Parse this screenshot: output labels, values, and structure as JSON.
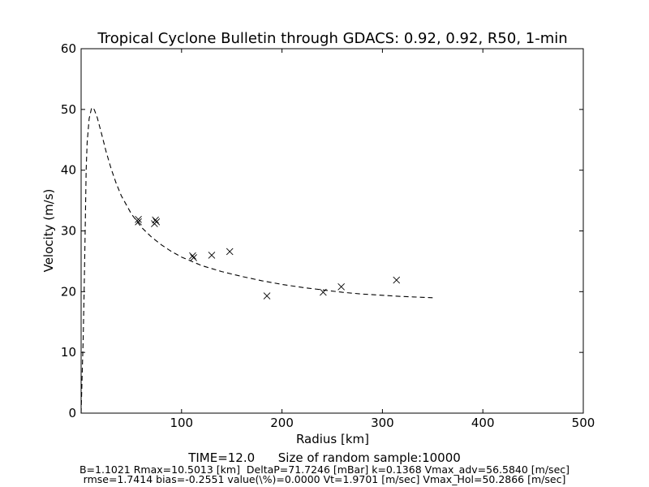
{
  "chart_data": {
    "type": "scatter",
    "title": "Tropical Cyclone Bulletin through GDACS: 0.92, 0.92, R50, 1-min",
    "xlabel": "Radius [km]",
    "ylabel": "Velocity (m/s)",
    "xlim": [
      0,
      500
    ],
    "ylim": [
      0,
      60
    ],
    "xticks": [
      100,
      200,
      300,
      400,
      500
    ],
    "yticks": [
      0,
      10,
      20,
      30,
      40,
      50,
      60
    ],
    "grid": false,
    "series": [
      {
        "style": "markers-x",
        "x": [
          57,
          57,
          73,
          74,
          75,
          111,
          112,
          130,
          148,
          185,
          241,
          259,
          314
        ],
        "y": [
          31.9,
          31.5,
          31.2,
          31.8,
          31.5,
          25.9,
          25.6,
          26.0,
          26.6,
          19.3,
          19.9,
          20.8,
          21.9
        ]
      },
      {
        "style": "dashed-line",
        "x": [
          0,
          1,
          2,
          3,
          4,
          5,
          6,
          8,
          10.5,
          13,
          16,
          20,
          25,
          30,
          35,
          40,
          50,
          60,
          70,
          80,
          90,
          100,
          120,
          140,
          160,
          180,
          200,
          220,
          240,
          260,
          280,
          300,
          320,
          350
        ],
        "y": [
          0,
          6,
          12,
          20,
          30,
          40,
          44.5,
          48.5,
          50.3,
          50.0,
          48.7,
          46.2,
          43.0,
          40.2,
          37.8,
          35.8,
          32.8,
          30.6,
          29.0,
          27.7,
          26.6,
          25.7,
          24.3,
          23.3,
          22.5,
          21.8,
          21.2,
          20.7,
          20.3,
          19.9,
          19.6,
          19.4,
          19.2,
          19.0
        ]
      }
    ]
  },
  "footer": {
    "time_line": "TIME=12.0      Size of random sample:10000",
    "params_line1": "B=1.1021 Rmax=10.5013 [km]  DeltaP=71.7246 [mBar] k=0.1368 Vmax_adv=56.5840 [m/sec]",
    "params_line2": "rmse=1.7414 bias=-0.2551 value(\\%)=0.0000 Vt=1.9701 [m/sec] Vmax_Hol=50.2866 [m/sec]"
  },
  "colors": {
    "markers": "#000000",
    "line": "#000000",
    "frame": "#000000",
    "background": "#ffffff"
  }
}
